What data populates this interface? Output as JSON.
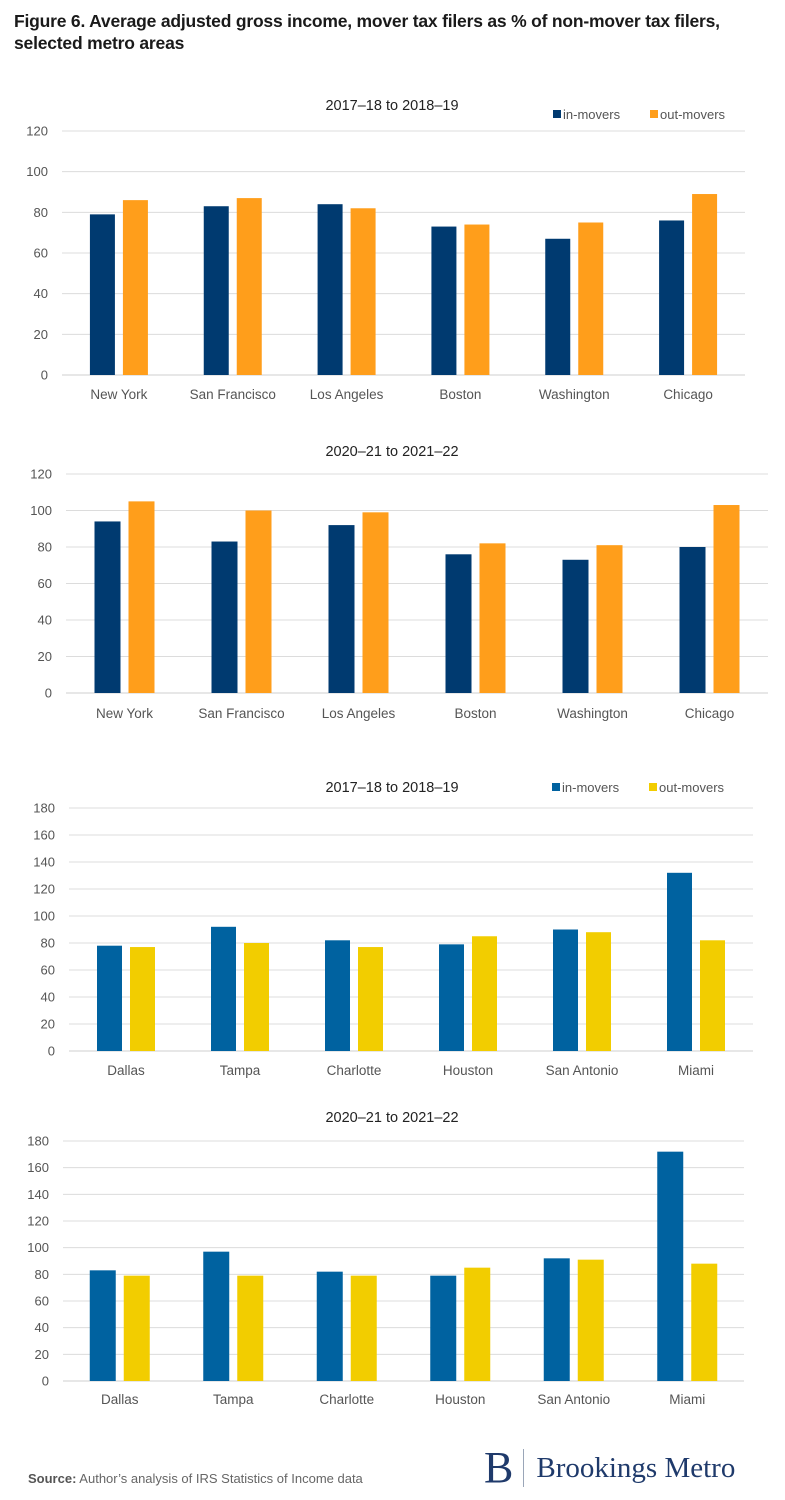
{
  "figure": {
    "title": "Figure 6.  Average adjusted gross income, mover tax filers as % of non-mover tax filers, selected metro areas",
    "source_label": "Source:",
    "source_text": " Author’s analysis of IRS Statistics of Income data",
    "logo_letter": "B",
    "logo_text": "Brookings Metro"
  },
  "chart_data": [
    {
      "type": "bar",
      "title": "2017–18 to 2018–19",
      "categories": [
        "New York",
        "San Francisco",
        "Los Angeles",
        "Boston",
        "Washington",
        "Chicago"
      ],
      "series": [
        {
          "name": "in-movers",
          "color": "#003A70",
          "values": [
            79,
            83,
            84,
            73,
            67,
            76
          ]
        },
        {
          "name": "out-movers",
          "color": "#FF9E1B",
          "values": [
            86,
            87,
            82,
            74,
            75,
            89
          ]
        }
      ],
      "ylim": [
        0,
        120
      ],
      "yticks": [
        0,
        20,
        40,
        60,
        80,
        100,
        120
      ],
      "xlabel": "",
      "ylabel": "",
      "grid": true,
      "legend": "top-right"
    },
    {
      "type": "bar",
      "title": "2020–21 to 2021–22",
      "categories": [
        "New York",
        "San Francisco",
        "Los Angeles",
        "Boston",
        "Washington",
        "Chicago"
      ],
      "series": [
        {
          "name": "in-movers",
          "color": "#003A70",
          "values": [
            94,
            83,
            92,
            76,
            73,
            80
          ]
        },
        {
          "name": "out-movers",
          "color": "#FF9E1B",
          "values": [
            105,
            100,
            99,
            82,
            81,
            103
          ]
        }
      ],
      "ylim": [
        0,
        120
      ],
      "yticks": [
        0,
        20,
        40,
        60,
        80,
        100,
        120
      ],
      "xlabel": "",
      "ylabel": "",
      "grid": true,
      "legend": "none"
    },
    {
      "type": "bar",
      "title": "2017–18 to 2018–19",
      "categories": [
        "Dallas",
        "Tampa",
        "Charlotte",
        "Houston",
        "San Antonio",
        "Miami"
      ],
      "series": [
        {
          "name": "in-movers",
          "color": "#0062A0",
          "values": [
            78,
            92,
            82,
            79,
            90,
            132
          ]
        },
        {
          "name": "out-movers",
          "color": "#F2CD00",
          "values": [
            77,
            80,
            77,
            85,
            88,
            82
          ]
        }
      ],
      "ylim": [
        0,
        180
      ],
      "yticks": [
        0,
        20,
        40,
        60,
        80,
        100,
        120,
        140,
        160,
        180
      ],
      "xlabel": "",
      "ylabel": "",
      "grid": true,
      "legend": "top-right"
    },
    {
      "type": "bar",
      "title": "2020–21 to 2021–22",
      "categories": [
        "Dallas",
        "Tampa",
        "Charlotte",
        "Houston",
        "San Antonio",
        "Miami"
      ],
      "series": [
        {
          "name": "in-movers",
          "color": "#0062A0",
          "values": [
            83,
            97,
            82,
            79,
            92,
            172
          ]
        },
        {
          "name": "out-movers",
          "color": "#F2CD00",
          "values": [
            79,
            79,
            79,
            85,
            91,
            88
          ]
        }
      ],
      "ylim": [
        0,
        180
      ],
      "yticks": [
        0,
        20,
        40,
        60,
        80,
        100,
        120,
        140,
        160,
        180
      ],
      "xlabel": "",
      "ylabel": "",
      "grid": true,
      "legend": "none"
    }
  ]
}
